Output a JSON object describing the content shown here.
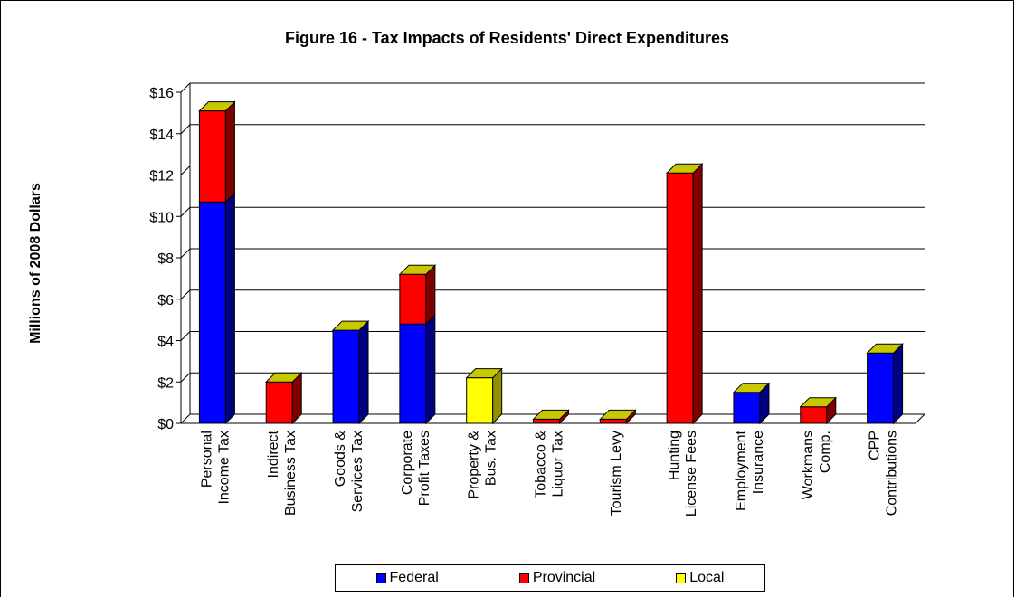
{
  "chart_data": {
    "type": "bar",
    "stacked": true,
    "three_d": true,
    "title": "Figure 16 - Tax Impacts of  Residents' Direct Expenditures",
    "xlabel": "",
    "ylabel": "Millions of 2008 Dollars",
    "ylim": [
      0,
      16
    ],
    "yticks": [
      "$0",
      "$2",
      "$4",
      "$6",
      "$8",
      "$10",
      "$12",
      "$14",
      "$16"
    ],
    "grid": true,
    "legend_position": "bottom",
    "categories": [
      [
        "Personal",
        "Income Tax"
      ],
      [
        "Indirect",
        "Business Tax"
      ],
      [
        "Goods &",
        "Services Tax"
      ],
      [
        "Corporate",
        "Profit Taxes"
      ],
      [
        "Property &",
        "Bus. Tax"
      ],
      [
        "Tobacco &",
        "Liquor Tax"
      ],
      [
        "Tourism Levy"
      ],
      [
        "Hunting",
        "License Fees"
      ],
      [
        "Employment",
        "Insurance"
      ],
      [
        "Workmans",
        "Comp."
      ],
      [
        "CPP",
        "Contributions"
      ]
    ],
    "series": [
      {
        "name": "Federal",
        "color": "#0000ff",
        "side": "#000080",
        "top": "#0000c0",
        "values": [
          10.7,
          0,
          4.5,
          4.8,
          0,
          0,
          0,
          0,
          1.5,
          0,
          3.4
        ]
      },
      {
        "name": "Provincial",
        "color": "#ff0000",
        "side": "#800000",
        "top": "#c00000",
        "values": [
          4.4,
          2.0,
          0,
          2.4,
          0,
          0.2,
          0.2,
          12.1,
          0,
          0.8,
          0
        ]
      },
      {
        "name": "Local",
        "color": "#ffff00",
        "side": "#909000",
        "top": "#c0c000",
        "values": [
          0,
          0,
          0,
          0,
          2.2,
          0,
          0,
          0,
          0,
          0,
          0
        ]
      }
    ],
    "top_cap_color": "#c8c800"
  }
}
